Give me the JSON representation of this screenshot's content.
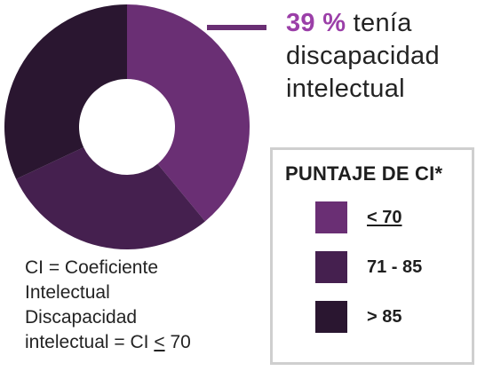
{
  "chart_data": {
    "type": "pie",
    "variant": "donut",
    "series": [
      {
        "label": "< 70",
        "value": 39,
        "color": "#6a2f74"
      },
      {
        "label": "71 - 85",
        "value": 29,
        "color": "#45204f"
      },
      {
        "label": "> 85",
        "value": 32,
        "color": "#2a1630"
      }
    ]
  },
  "headline": {
    "value": "39 %",
    "text_part1": "tenía",
    "text_part2": "discapacidad",
    "text_part3": "intelectual"
  },
  "legend": {
    "title": "PUNTAJE DE CI*",
    "items": [
      {
        "label": "< 70",
        "color": "#6a2f74"
      },
      {
        "label": "71 - 85",
        "color": "#45204f"
      },
      {
        "label": "> 85",
        "color": "#2a1630"
      }
    ]
  },
  "notes": {
    "line1": "CI = Coeficiente",
    "line2": "Intelectual",
    "line3": "Discapacidad",
    "line4_prefix": "intelectual = CI",
    "line4_symbol": "<",
    "line4_value": "70"
  },
  "colors": {
    "accent": "#9b3fa8",
    "connector": "#6a2f74",
    "legend_border": "#cfcfcf"
  }
}
